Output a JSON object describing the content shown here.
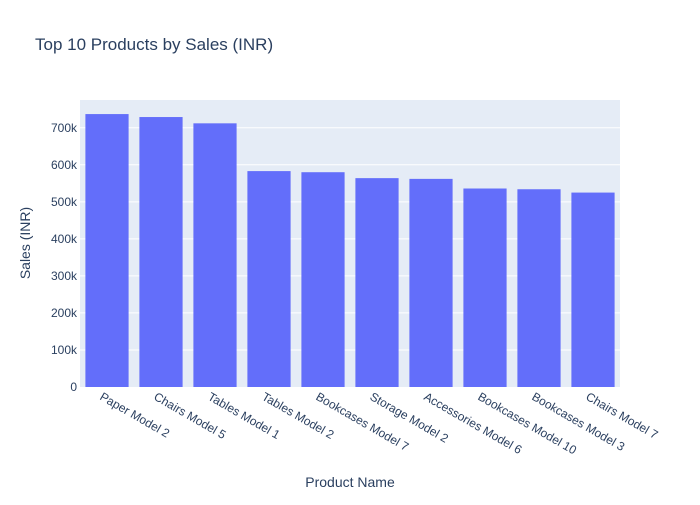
{
  "chart_data": {
    "type": "bar",
    "title": "Top 10 Products by Sales (INR)",
    "xlabel": "Product Name",
    "ylabel": "Sales (INR)",
    "categories": [
      "Paper Model 2",
      "Chairs Model 5",
      "Tables Model 1",
      "Tables Model 2",
      "Bookcases Model 7",
      "Storage Model 2",
      "Accessories Model 6",
      "Bookcases Model 10",
      "Bookcases Model 3",
      "Chairs Model 7"
    ],
    "values": [
      737000,
      729000,
      712000,
      583000,
      580000,
      564000,
      562000,
      536000,
      534000,
      525000
    ],
    "ylim": [
      0,
      775000
    ],
    "yticks": [
      0,
      100000,
      200000,
      300000,
      400000,
      500000,
      600000,
      700000
    ],
    "ytick_labels": [
      "0",
      "100k",
      "200k",
      "300k",
      "400k",
      "500k",
      "600k",
      "700k"
    ],
    "grid": true,
    "colors": {
      "bar": "#636efa",
      "plot_bg": "#e5ecf6",
      "grid": "#ffffff",
      "text": "#2a3f5f"
    }
  }
}
